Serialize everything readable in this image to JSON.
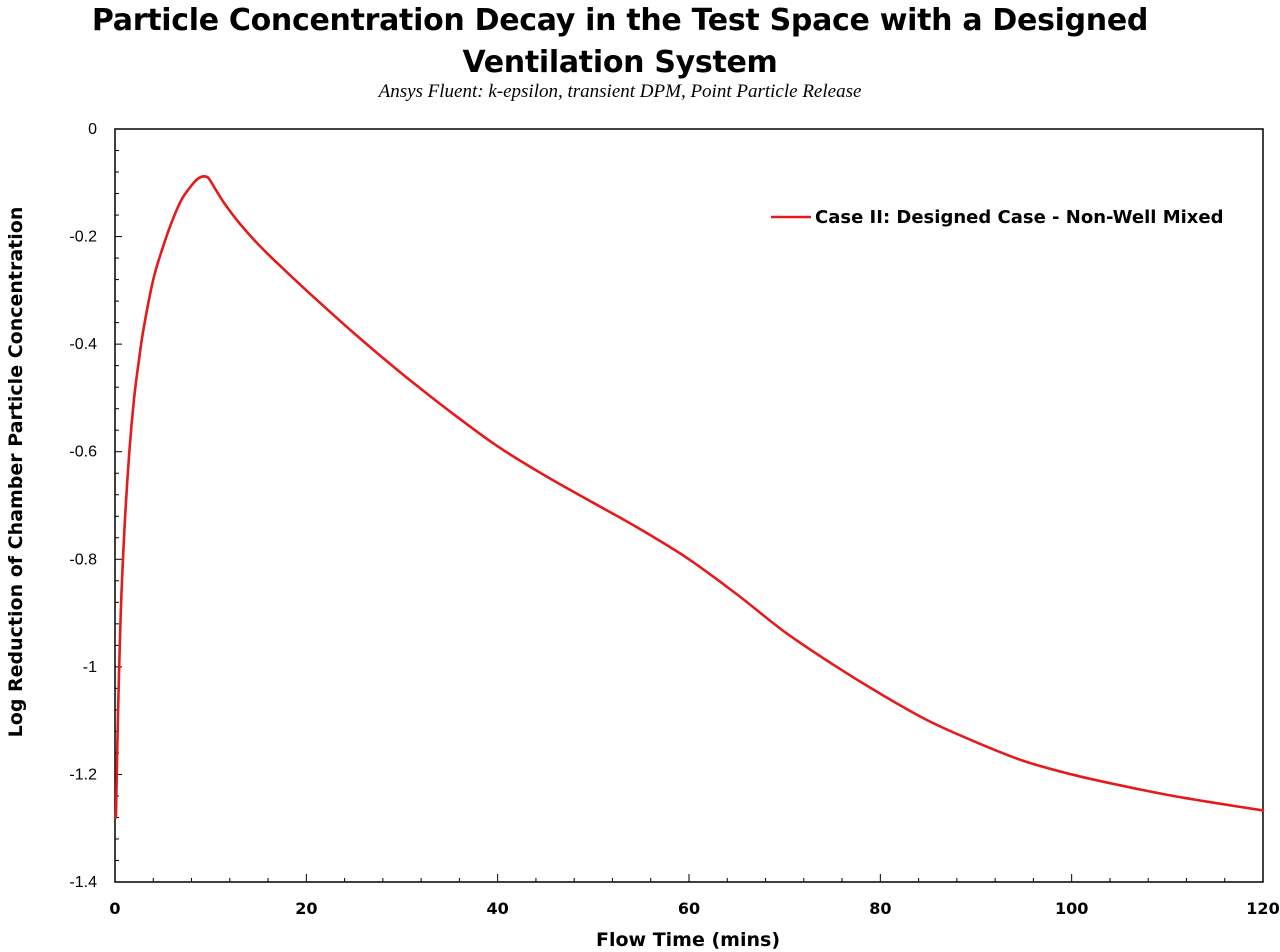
{
  "chart_data": {
    "type": "line",
    "title_lines": [
      "Particle Concentration Decay in the Test Space with a Designed",
      "Ventilation System"
    ],
    "subtitle": "Ansys Fluent: k-epsilon, transient DPM, Point Particle Release",
    "xlabel": "Flow Time (mins)",
    "ylabel": "Log Reduction of Chamber Particle Concentration",
    "xlim": [
      0,
      120
    ],
    "ylim": [
      -1.4,
      0
    ],
    "x_ticks": [
      0,
      20,
      40,
      60,
      80,
      100,
      120
    ],
    "x_tick_labels": [
      "0",
      "20",
      "40",
      "60",
      "80",
      "100",
      "120"
    ],
    "y_ticks": [
      0,
      -0.2,
      -0.4,
      -0.6,
      -0.8,
      -1,
      -1.2,
      -1.4
    ],
    "y_tick_labels": [
      "0",
      "-0.2",
      "-0.4",
      "-0.6",
      "-0.8",
      "-1",
      "-1.2",
      "-1.4"
    ],
    "grid": false,
    "legend_position": "top-right",
    "series": [
      {
        "name": "Case II: Designed Case - Non-Well Mixed",
        "color": "#e41a1c",
        "x": [
          0.1,
          0.3,
          0.6,
          1.0,
          1.5,
          2.0,
          2.5,
          3.0,
          4.0,
          5.0,
          6.0,
          7.0,
          8.0,
          8.7,
          9.3,
          9.7,
          10.1,
          10.6,
          11.5,
          13.0,
          15.0,
          17.0,
          20.0,
          25.0,
          30.0,
          35.0,
          40.0,
          45.0,
          50.0,
          55.0,
          60.0,
          65.0,
          70.0,
          75.0,
          80.0,
          85.0,
          90.0,
          95.0,
          100.0,
          105.0,
          110.0,
          115.0,
          120.0
        ],
        "y": [
          -1.28,
          -1.1,
          -0.9,
          -0.74,
          -0.6,
          -0.5,
          -0.43,
          -0.37,
          -0.28,
          -0.22,
          -0.17,
          -0.13,
          -0.105,
          -0.092,
          -0.088,
          -0.09,
          -0.1,
          -0.115,
          -0.14,
          -0.175,
          -0.215,
          -0.25,
          -0.3,
          -0.38,
          -0.455,
          -0.525,
          -0.59,
          -0.645,
          -0.695,
          -0.745,
          -0.8,
          -0.865,
          -0.935,
          -0.995,
          -1.05,
          -1.1,
          -1.14,
          -1.175,
          -1.2,
          -1.22,
          -1.238,
          -1.253,
          -1.267
        ]
      }
    ]
  }
}
